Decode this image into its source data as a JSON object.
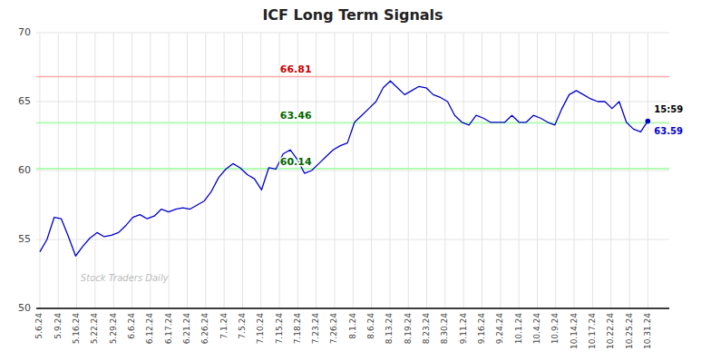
{
  "chart_data": {
    "type": "line",
    "title": "ICF Long Term Signals",
    "color": "#0000cc",
    "grid": true,
    "ylim": [
      50,
      70
    ],
    "yticks": [
      50,
      55,
      60,
      65,
      70
    ],
    "xlim": [
      -0.5,
      88
    ],
    "xticks": [
      {
        "value": 0,
        "label": "5.6.24"
      },
      {
        "value": 2.5758,
        "label": "5.9.24"
      },
      {
        "value": 5.1515,
        "label": "5.16.24"
      },
      {
        "value": 7.7273,
        "label": "5.22.24"
      },
      {
        "value": 10.303,
        "label": "5.29.24"
      },
      {
        "value": 12.8788,
        "label": "6.6.24"
      },
      {
        "value": 15.4545,
        "label": "6.12.24"
      },
      {
        "value": 18.0303,
        "label": "6.17.24"
      },
      {
        "value": 20.6061,
        "label": "6.21.24"
      },
      {
        "value": 23.1818,
        "label": "6.26.24"
      },
      {
        "value": 25.7576,
        "label": "7.1.24"
      },
      {
        "value": 28.3333,
        "label": "7.5.24"
      },
      {
        "value": 30.9091,
        "label": "7.10.24"
      },
      {
        "value": 33.4848,
        "label": "7.15.24"
      },
      {
        "value": 36.0606,
        "label": "7.18.24"
      },
      {
        "value": 38.6364,
        "label": "7.23.24"
      },
      {
        "value": 41.2121,
        "label": "7.26.24"
      },
      {
        "value": 43.7879,
        "label": "8.1.24"
      },
      {
        "value": 46.3636,
        "label": "8.6.24"
      },
      {
        "value": 48.9394,
        "label": "8.13.24"
      },
      {
        "value": 51.5152,
        "label": "8.19.24"
      },
      {
        "value": 54.0909,
        "label": "8.23.24"
      },
      {
        "value": 56.6667,
        "label": "8.30.24"
      },
      {
        "value": 59.2424,
        "label": "9.11.24"
      },
      {
        "value": 61.8182,
        "label": "9.16.24"
      },
      {
        "value": 64.3939,
        "label": "9.24.24"
      },
      {
        "value": 66.9697,
        "label": "10.1.24"
      },
      {
        "value": 69.5455,
        "label": "10.4.24"
      },
      {
        "value": 72.1212,
        "label": "10.9.24"
      },
      {
        "value": 74.697,
        "label": "10.14.24"
      },
      {
        "value": 77.2727,
        "label": "10.17.24"
      },
      {
        "value": 79.8485,
        "label": "10.22.24"
      },
      {
        "value": 82.4242,
        "label": "10.25.24"
      },
      {
        "value": 85,
        "label": "10.31.24"
      }
    ],
    "x": [
      0,
      1,
      2,
      3,
      4,
      5,
      6,
      7,
      8,
      9,
      10,
      11,
      12,
      13,
      14,
      15,
      16,
      17,
      18,
      19,
      20,
      21,
      22,
      23,
      24,
      25,
      26,
      27,
      28,
      29,
      30,
      31,
      32,
      33,
      34,
      35,
      36,
      37,
      38,
      39,
      40,
      41,
      42,
      43,
      44,
      45,
      46,
      47,
      48,
      49,
      50,
      51,
      52,
      53,
      54,
      55,
      56,
      57,
      58,
      59,
      60,
      61,
      62,
      63,
      64,
      65,
      66,
      67,
      68,
      69,
      70,
      71,
      72,
      73,
      74,
      75,
      76,
      77,
      78,
      79,
      80,
      81,
      82,
      83,
      84,
      85
    ],
    "values": [
      54.1,
      55.0,
      56.6,
      56.5,
      55.2,
      53.8,
      54.5,
      55.1,
      55.5,
      55.2,
      55.3,
      55.5,
      56.0,
      56.6,
      56.8,
      56.5,
      56.7,
      57.2,
      57.0,
      57.2,
      57.3,
      57.2,
      57.5,
      57.8,
      58.5,
      59.5,
      60.1,
      60.5,
      60.2,
      59.7,
      59.4,
      58.6,
      60.2,
      60.1,
      61.2,
      61.5,
      60.8,
      59.8,
      60.0,
      60.5,
      61.0,
      61.5,
      61.8,
      62.0,
      63.5,
      64.0,
      64.5,
      65.0,
      66.0,
      66.5,
      66.0,
      65.5,
      65.8,
      66.1,
      66.0,
      65.5,
      65.3,
      65.0,
      64.0,
      63.5,
      63.3,
      64.0,
      63.8,
      63.5,
      63.5,
      63.5,
      64.0,
      63.5,
      63.5,
      64.0,
      63.8,
      63.5,
      63.3,
      64.5,
      65.5,
      65.8,
      65.5,
      65.2,
      65.0,
      65.0,
      64.5,
      65.0,
      63.5,
      63.0,
      62.8,
      63.59
    ],
    "reference_lines": [
      {
        "value": 66.81,
        "label": "66.81",
        "color": "#ffaaaa",
        "label_color": "#cc0000"
      },
      {
        "value": 63.46,
        "label": "63.46",
        "color": "#aaffaa",
        "label_color": "#006600"
      },
      {
        "value": 60.14,
        "label": "60.14",
        "color": "#aaffaa",
        "label_color": "#006600"
      }
    ],
    "annotations": [
      {
        "kind": "time",
        "text": "15:59",
        "color": "#000000"
      },
      {
        "kind": "last-value",
        "text": "63.59",
        "value": 63.59,
        "color": "#0000cc"
      },
      {
        "kind": "watermark",
        "text": "Stock Traders Daily",
        "color": "#bbbbbb"
      }
    ]
  }
}
